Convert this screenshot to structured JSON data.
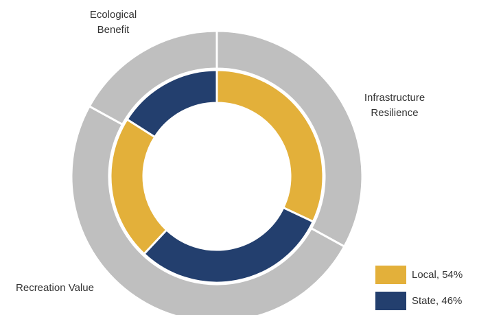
{
  "chart_data": {
    "type": "nested-donut",
    "categories": [
      [
        "Infrastructure",
        "Resilience"
      ],
      [
        "Recreation Value"
      ],
      [
        "Ecological",
        "Benefit"
      ]
    ],
    "values": [
      33,
      50,
      17
    ],
    "color": "#bfbfbf",
    "inner": {
      "values": [
        32,
        30,
        22,
        16
      ],
      "colors": [
        "#e3b03a",
        "#233f6e",
        "#e3b03a",
        "#233f6e"
      ]
    },
    "legend": [
      {
        "name": "Local, 54%",
        "color": "#e3b03a"
      },
      {
        "name": "State, 46%",
        "color": "#233f6e"
      }
    ]
  }
}
